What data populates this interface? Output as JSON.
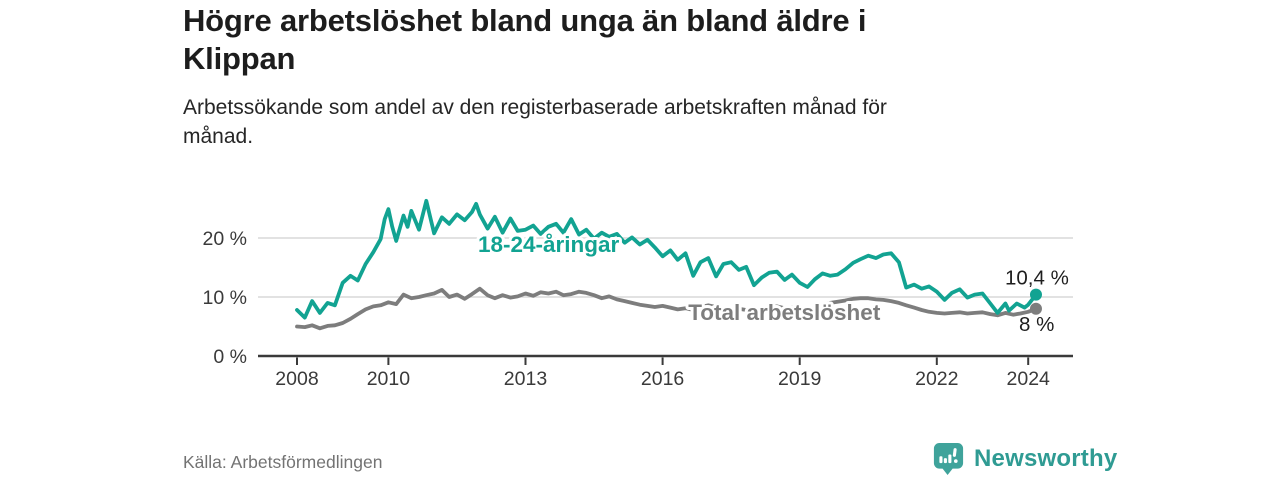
{
  "header": {
    "title": "Högre arbetslöshet bland unga än bland äldre i Klippan",
    "subtitle": "Arbetssökande som andel av den registerbaserade arbetskraften månad för månad."
  },
  "footer": {
    "source": "Källa: Arbetsförmedlingen",
    "brand": "Newsworthy",
    "brand_icon": "speech-bubble-bar-chart-icon"
  },
  "colors": {
    "youth": "#12a392",
    "total": "#7d7d7d",
    "axis": "#3a3a3a",
    "grid": "#d9d9d9",
    "end_label": "#1e1e1e",
    "brand": "#2f9b93",
    "brand_icon": "#3fa39b"
  },
  "chart_data": {
    "type": "line",
    "unit": "%",
    "x_axis": {
      "ticks": [
        2008,
        2010,
        2013,
        2016,
        2019,
        2022,
        2024
      ],
      "range": [
        2007.2,
        2024.9
      ],
      "grid": false
    },
    "y_axis": {
      "ticks": [
        0,
        10,
        20
      ],
      "tick_suffix": " %",
      "range": [
        0,
        27.5
      ],
      "grid": true
    },
    "legend_position": "inline-labels",
    "series": [
      {
        "id": "total",
        "name": "Total arbetslöshet",
        "color": "#7d7d7d",
        "label_at": [
          2016.56,
          6.1
        ],
        "end_label": "8 %",
        "end_label_offset": [
          -17,
          22
        ],
        "points": [
          [
            2008,
            5
          ],
          [
            2008.17,
            4.9
          ],
          [
            2008.33,
            5.2
          ],
          [
            2008.5,
            4.7
          ],
          [
            2008.67,
            5.1
          ],
          [
            2008.83,
            5.2
          ],
          [
            2009,
            5.6
          ],
          [
            2009.17,
            6.3
          ],
          [
            2009.33,
            7.1
          ],
          [
            2009.5,
            7.9
          ],
          [
            2009.67,
            8.4
          ],
          [
            2009.83,
            8.6
          ],
          [
            2010,
            9.1
          ],
          [
            2010.17,
            8.8
          ],
          [
            2010.33,
            10.4
          ],
          [
            2010.5,
            9.8
          ],
          [
            2010.67,
            10
          ],
          [
            2010.83,
            10.3
          ],
          [
            2011,
            10.6
          ],
          [
            2011.17,
            11.2
          ],
          [
            2011.33,
            10
          ],
          [
            2011.5,
            10.4
          ],
          [
            2011.67,
            9.7
          ],
          [
            2011.83,
            10.5
          ],
          [
            2012,
            11.4
          ],
          [
            2012.17,
            10.3
          ],
          [
            2012.33,
            9.8
          ],
          [
            2012.5,
            10.3
          ],
          [
            2012.67,
            9.9
          ],
          [
            2012.83,
            10.1
          ],
          [
            2013,
            10.6
          ],
          [
            2013.17,
            10.2
          ],
          [
            2013.33,
            10.8
          ],
          [
            2013.5,
            10.6
          ],
          [
            2013.67,
            10.9
          ],
          [
            2013.83,
            10.3
          ],
          [
            2014,
            10.5
          ],
          [
            2014.17,
            10.9
          ],
          [
            2014.33,
            10.7
          ],
          [
            2014.5,
            10.3
          ],
          [
            2014.67,
            9.8
          ],
          [
            2014.83,
            10.1
          ],
          [
            2015,
            9.6
          ],
          [
            2015.17,
            9.3
          ],
          [
            2015.33,
            9
          ],
          [
            2015.5,
            8.7
          ],
          [
            2015.67,
            8.5
          ],
          [
            2015.83,
            8.3
          ],
          [
            2016,
            8.5
          ],
          [
            2016.17,
            8.2
          ],
          [
            2016.33,
            7.9
          ],
          [
            2016.5,
            8.1
          ],
          [
            2016.67,
            7.8
          ],
          [
            2016.83,
            8.3
          ],
          [
            2017,
            8.6
          ],
          [
            2017.17,
            8.3
          ],
          [
            2017.33,
            7.9
          ],
          [
            2017.5,
            7.7
          ],
          [
            2017.67,
            8
          ],
          [
            2017.83,
            7.8
          ],
          [
            2018,
            7.6
          ],
          [
            2018.17,
            8
          ],
          [
            2018.33,
            8.3
          ],
          [
            2018.5,
            8.4
          ],
          [
            2018.67,
            8.1
          ],
          [
            2018.83,
            8.2
          ],
          [
            2019,
            8
          ],
          [
            2019.17,
            7.9
          ],
          [
            2019.33,
            8.2
          ],
          [
            2019.5,
            8.6
          ],
          [
            2019.67,
            9
          ],
          [
            2019.83,
            9.2
          ],
          [
            2020,
            9.4
          ],
          [
            2020.17,
            9.7
          ],
          [
            2020.33,
            9.8
          ],
          [
            2020.5,
            9.8
          ],
          [
            2020.67,
            9.6
          ],
          [
            2020.83,
            9.5
          ],
          [
            2021,
            9.3
          ],
          [
            2021.17,
            9
          ],
          [
            2021.33,
            8.6
          ],
          [
            2021.5,
            8.2
          ],
          [
            2021.67,
            7.8
          ],
          [
            2021.83,
            7.5
          ],
          [
            2022,
            7.3
          ],
          [
            2022.17,
            7.2
          ],
          [
            2022.33,
            7.3
          ],
          [
            2022.5,
            7.4
          ],
          [
            2022.67,
            7.2
          ],
          [
            2022.83,
            7.3
          ],
          [
            2023,
            7.4
          ],
          [
            2023.17,
            7.1
          ],
          [
            2023.33,
            6.9
          ],
          [
            2023.5,
            7.3
          ],
          [
            2023.67,
            7
          ],
          [
            2023.83,
            7.2
          ],
          [
            2024,
            7.5
          ],
          [
            2024.17,
            8
          ]
        ]
      },
      {
        "id": "youth",
        "name": "18-24-åringar",
        "color": "#12a392",
        "label_at": [
          2011.96,
          17.6
        ],
        "end_label": "10,4 %",
        "end_label_offset": [
          -31,
          -10
        ],
        "points": [
          [
            2008,
            7.8
          ],
          [
            2008.17,
            6.5
          ],
          [
            2008.33,
            9.3
          ],
          [
            2008.5,
            7.3
          ],
          [
            2008.67,
            9
          ],
          [
            2008.83,
            8.6
          ],
          [
            2009,
            12.4
          ],
          [
            2009.17,
            13.6
          ],
          [
            2009.33,
            12.8
          ],
          [
            2009.5,
            15.6
          ],
          [
            2009.67,
            17.6
          ],
          [
            2009.83,
            19.8
          ],
          [
            2009.92,
            23.2
          ],
          [
            2010,
            24.9
          ],
          [
            2010.08,
            22
          ],
          [
            2010.17,
            19.5
          ],
          [
            2010.33,
            23.8
          ],
          [
            2010.42,
            21.9
          ],
          [
            2010.5,
            24.6
          ],
          [
            2010.67,
            21.4
          ],
          [
            2010.83,
            26.3
          ],
          [
            2011,
            20.8
          ],
          [
            2011.17,
            23.5
          ],
          [
            2011.33,
            22.4
          ],
          [
            2011.5,
            24
          ],
          [
            2011.67,
            23
          ],
          [
            2011.83,
            24.4
          ],
          [
            2011.92,
            25.8
          ],
          [
            2012,
            24
          ],
          [
            2012.17,
            21.6
          ],
          [
            2012.33,
            23.6
          ],
          [
            2012.5,
            20.9
          ],
          [
            2012.67,
            23.3
          ],
          [
            2012.83,
            21.2
          ],
          [
            2013,
            21.4
          ],
          [
            2013.17,
            22.1
          ],
          [
            2013.33,
            20.7
          ],
          [
            2013.5,
            21.9
          ],
          [
            2013.67,
            22.4
          ],
          [
            2013.83,
            20.9
          ],
          [
            2014,
            23.2
          ],
          [
            2014.17,
            20.6
          ],
          [
            2014.33,
            21.4
          ],
          [
            2014.5,
            19.9
          ],
          [
            2014.67,
            20.9
          ],
          [
            2014.83,
            20.2
          ],
          [
            2015,
            20.7
          ],
          [
            2015.17,
            19.2
          ],
          [
            2015.33,
            20.1
          ],
          [
            2015.5,
            18.9
          ],
          [
            2015.67,
            19.7
          ],
          [
            2015.83,
            18.4
          ],
          [
            2016,
            16.9
          ],
          [
            2016.17,
            17.9
          ],
          [
            2016.33,
            16.3
          ],
          [
            2016.5,
            17.4
          ],
          [
            2016.67,
            13.6
          ],
          [
            2016.83,
            15.9
          ],
          [
            2017,
            16.6
          ],
          [
            2017.17,
            13.5
          ],
          [
            2017.33,
            15.6
          ],
          [
            2017.5,
            15.9
          ],
          [
            2017.67,
            14.6
          ],
          [
            2017.83,
            15.1
          ],
          [
            2018,
            12
          ],
          [
            2018.17,
            13.3
          ],
          [
            2018.33,
            14.1
          ],
          [
            2018.5,
            14.3
          ],
          [
            2018.67,
            12.9
          ],
          [
            2018.83,
            13.8
          ],
          [
            2019,
            12.4
          ],
          [
            2019.17,
            11.7
          ],
          [
            2019.33,
            13
          ],
          [
            2019.5,
            14
          ],
          [
            2019.67,
            13.6
          ],
          [
            2019.83,
            13.8
          ],
          [
            2020,
            14.7
          ],
          [
            2020.17,
            15.8
          ],
          [
            2020.33,
            16.4
          ],
          [
            2020.5,
            17
          ],
          [
            2020.67,
            16.6
          ],
          [
            2020.83,
            17.2
          ],
          [
            2021,
            17.4
          ],
          [
            2021.17,
            15.9
          ],
          [
            2021.33,
            11.6
          ],
          [
            2021.5,
            12.1
          ],
          [
            2021.67,
            11.4
          ],
          [
            2021.83,
            11.8
          ],
          [
            2022,
            10.9
          ],
          [
            2022.17,
            9.5
          ],
          [
            2022.33,
            10.7
          ],
          [
            2022.5,
            11.3
          ],
          [
            2022.67,
            9.9
          ],
          [
            2022.83,
            10.4
          ],
          [
            2023,
            10.6
          ],
          [
            2023.17,
            8.9
          ],
          [
            2023.33,
            7.3
          ],
          [
            2023.5,
            8.9
          ],
          [
            2023.58,
            7.7
          ],
          [
            2023.75,
            8.9
          ],
          [
            2023.92,
            8.2
          ],
          [
            2024,
            8.7
          ],
          [
            2024.17,
            10.4
          ]
        ]
      }
    ]
  }
}
